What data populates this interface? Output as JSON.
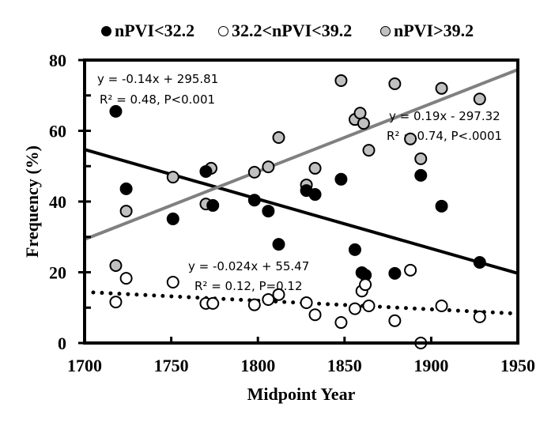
{
  "chart_data": {
    "type": "scatter",
    "title": "",
    "xlabel": "Midpoint Year",
    "ylabel": "Frequency (%)",
    "xlim": [
      1700,
      1950
    ],
    "ylim": [
      0,
      80
    ],
    "xticks": [
      1700,
      1750,
      1800,
      1850,
      1900,
      1950
    ],
    "yticks": [
      0,
      20,
      40,
      60,
      80
    ],
    "x_tick_labels": [
      "1700",
      "1750",
      "1800",
      "1850",
      "1900",
      "1950"
    ],
    "y_tick_labels": [
      "0",
      "20",
      "40",
      "60",
      "80"
    ],
    "grid": false,
    "legend_position": "top",
    "series": [
      {
        "name": "nPVI<32.2",
        "color": "#000000",
        "fill": "#000000",
        "points": [
          [
            1718,
            65.5
          ],
          [
            1724,
            43.6
          ],
          [
            1751,
            35.1
          ],
          [
            1770,
            48.5
          ],
          [
            1774,
            38.9
          ],
          [
            1798,
            40.4
          ],
          [
            1806,
            37.3
          ],
          [
            1812,
            27.9
          ],
          [
            1828,
            43.1
          ],
          [
            1833,
            42.0
          ],
          [
            1848,
            46.3
          ],
          [
            1856,
            26.4
          ],
          [
            1860,
            19.9
          ],
          [
            1862,
            19.2
          ],
          [
            1879,
            19.7
          ],
          [
            1894,
            47.4
          ],
          [
            1906,
            38.7
          ],
          [
            1928,
            22.8
          ]
        ],
        "trendline": {
          "style": "solid",
          "color": "#000000",
          "x": [
            1700,
            1950
          ],
          "y": [
            54.7,
            19.7
          ]
        },
        "annotation": [
          "y = -0.14x + 295.81",
          "R² = 0.48, P<0.001"
        ]
      },
      {
        "name": "32.2<nPVI<39.2",
        "color": "#000000",
        "fill": "#ffffff",
        "points": [
          [
            1718,
            11.6
          ],
          [
            1724,
            18.3
          ],
          [
            1751,
            17.2
          ],
          [
            1770,
            11.2
          ],
          [
            1774,
            11.2
          ],
          [
            1798,
            10.8
          ],
          [
            1806,
            12.3
          ],
          [
            1812,
            13.7
          ],
          [
            1828,
            11.4
          ],
          [
            1833,
            8.0
          ],
          [
            1848,
            5.8
          ],
          [
            1856,
            9.7
          ],
          [
            1860,
            14.7
          ],
          [
            1862,
            16.5
          ],
          [
            1864,
            10.5
          ],
          [
            1879,
            6.3
          ],
          [
            1888,
            20.6
          ],
          [
            1894,
            0.0
          ],
          [
            1906,
            10.5
          ],
          [
            1928,
            7.4
          ]
        ],
        "trendline": {
          "style": "dotted",
          "color": "#000000",
          "x": [
            1705,
            1950
          ],
          "y": [
            14.3,
            8.3
          ]
        },
        "annotation": [
          "y = -0.024x + 55.47",
          "R² = 0.12, P=0.12"
        ]
      },
      {
        "name": "nPVI>39.2",
        "color": "#000000",
        "fill": "#c0c0c0",
        "points": [
          [
            1718,
            21.9
          ],
          [
            1724,
            37.3
          ],
          [
            1751,
            46.9
          ],
          [
            1770,
            39.3
          ],
          [
            1773,
            49.4
          ],
          [
            1798,
            48.3
          ],
          [
            1806,
            49.8
          ],
          [
            1812,
            58.1
          ],
          [
            1828,
            44.7
          ],
          [
            1833,
            49.4
          ],
          [
            1848,
            74.2
          ],
          [
            1856,
            63.2
          ],
          [
            1859,
            65.0
          ],
          [
            1861,
            62.1
          ],
          [
            1864,
            54.5
          ],
          [
            1879,
            73.3
          ],
          [
            1888,
            57.7
          ],
          [
            1894,
            52.1
          ],
          [
            1906,
            72.0
          ],
          [
            1928,
            69.0
          ]
        ],
        "trendline": {
          "style": "solid",
          "color": "#808080",
          "x": [
            1700,
            1950
          ],
          "y": [
            29.3,
            77.3
          ]
        },
        "annotation": [
          "y = 0.19x - 297.32",
          "R² = 0.74, P<.0001"
        ]
      }
    ]
  }
}
